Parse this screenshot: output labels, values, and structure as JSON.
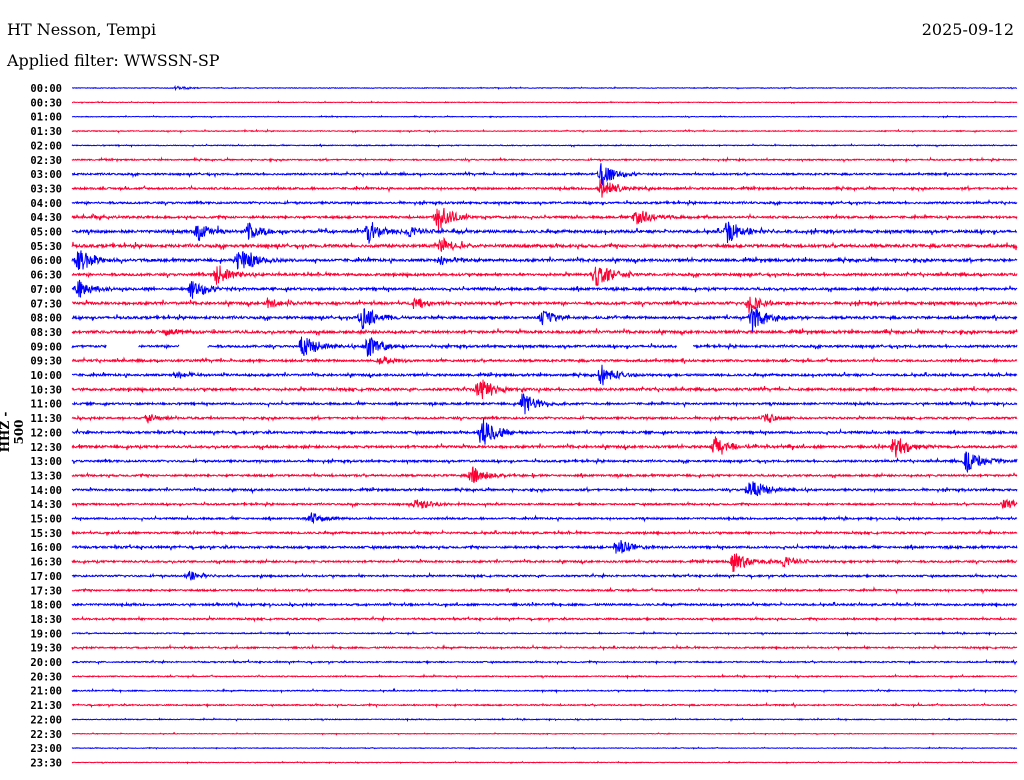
{
  "header": {
    "station": "HT Nesson, Tempi",
    "filter": "Applied filter: WWSSN-SP",
    "date": "2025-09-12"
  },
  "colors": {
    "hour": "#0000ff",
    "half_hour": "#ff0033"
  },
  "chart_data": {
    "type": "line",
    "title": "HT Nesson, Tempi",
    "ylabel": "HHZ - 500",
    "row_minutes": 30,
    "row_labels": [
      "00:00",
      "00:30",
      "01:00",
      "01:30",
      "02:00",
      "02:30",
      "03:00",
      "03:30",
      "04:00",
      "04:30",
      "05:00",
      "05:30",
      "06:00",
      "06:30",
      "07:00",
      "07:30",
      "08:00",
      "08:30",
      "09:00",
      "09:30",
      "10:00",
      "10:30",
      "11:00",
      "11:30",
      "12:00",
      "12:30",
      "13:00",
      "13:30",
      "14:00",
      "14:30",
      "15:00",
      "15:30",
      "16:00",
      "16:30",
      "17:00",
      "17:30",
      "18:00",
      "18:30",
      "19:00",
      "19:30",
      "20:00",
      "20:30",
      "21:00",
      "21:30",
      "22:00",
      "22:30",
      "23:00",
      "23:30"
    ],
    "row_noise": [
      0.3,
      0.3,
      0.3,
      0.4,
      0.4,
      0.6,
      0.8,
      0.9,
      0.9,
      1.0,
      1.2,
      1.3,
      1.2,
      1.1,
      1.1,
      1.2,
      1.1,
      1.2,
      1.0,
      1.0,
      1.0,
      1.1,
      0.9,
      0.9,
      1.0,
      1.1,
      0.9,
      0.9,
      0.9,
      0.8,
      0.8,
      0.9,
      1.0,
      0.9,
      0.8,
      0.8,
      0.9,
      0.8,
      0.5,
      0.7,
      0.6,
      0.5,
      0.5,
      0.6,
      0.4,
      0.3,
      0.3,
      0.3
    ],
    "events": [
      {
        "row": 0,
        "minute": 3.3,
        "amp": 2
      },
      {
        "row": 6,
        "minute": 16.8,
        "amp": 14
      },
      {
        "row": 7,
        "minute": 16.8,
        "amp": 12
      },
      {
        "row": 9,
        "minute": 0.7,
        "amp": 3
      },
      {
        "row": 9,
        "minute": 11.6,
        "amp": 15
      },
      {
        "row": 9,
        "minute": 17.9,
        "amp": 10
      },
      {
        "row": 10,
        "minute": 4.0,
        "amp": 10
      },
      {
        "row": 10,
        "minute": 5.6,
        "amp": 9
      },
      {
        "row": 10,
        "minute": 9.4,
        "amp": 12
      },
      {
        "row": 10,
        "minute": 10.7,
        "amp": 6
      },
      {
        "row": 10,
        "minute": 20.8,
        "amp": 12
      },
      {
        "row": 11,
        "minute": 11.7,
        "amp": 8
      },
      {
        "row": 11,
        "minute": 30.0,
        "amp": 6
      },
      {
        "row": 12,
        "minute": 0.2,
        "amp": 14
      },
      {
        "row": 12,
        "minute": 5.3,
        "amp": 16
      },
      {
        "row": 12,
        "minute": 11.7,
        "amp": 6
      },
      {
        "row": 13,
        "minute": 4.6,
        "amp": 10
      },
      {
        "row": 13,
        "minute": 16.6,
        "amp": 14
      },
      {
        "row": 14,
        "minute": 0.2,
        "amp": 10
      },
      {
        "row": 14,
        "minute": 3.8,
        "amp": 12
      },
      {
        "row": 15,
        "minute": 6.2,
        "amp": 5
      },
      {
        "row": 15,
        "minute": 10.9,
        "amp": 6
      },
      {
        "row": 15,
        "minute": 21.5,
        "amp": 10
      },
      {
        "row": 16,
        "minute": 9.2,
        "amp": 12
      },
      {
        "row": 16,
        "minute": 14.9,
        "amp": 8
      },
      {
        "row": 16,
        "minute": 21.6,
        "amp": 16
      },
      {
        "row": 17,
        "minute": 3.0,
        "amp": 4
      },
      {
        "row": 18,
        "minute": 7.3,
        "amp": 12
      },
      {
        "row": 18,
        "minute": 9.4,
        "amp": 12
      },
      {
        "row": 19,
        "minute": 9.8,
        "amp": 5
      },
      {
        "row": 20,
        "minute": 3.3,
        "amp": 5
      },
      {
        "row": 20,
        "minute": 16.8,
        "amp": 12
      },
      {
        "row": 21,
        "minute": 12.9,
        "amp": 14
      },
      {
        "row": 22,
        "minute": 14.3,
        "amp": 12
      },
      {
        "row": 23,
        "minute": 2.4,
        "amp": 5
      },
      {
        "row": 23,
        "minute": 22.0,
        "amp": 6
      },
      {
        "row": 24,
        "minute": 13.0,
        "amp": 16
      },
      {
        "row": 25,
        "minute": 20.4,
        "amp": 12
      },
      {
        "row": 25,
        "minute": 26.1,
        "amp": 12
      },
      {
        "row": 26,
        "minute": 28.4,
        "amp": 12
      },
      {
        "row": 27,
        "minute": 12.7,
        "amp": 10
      },
      {
        "row": 28,
        "minute": 21.5,
        "amp": 12
      },
      {
        "row": 29,
        "minute": 10.9,
        "amp": 6
      },
      {
        "row": 29,
        "minute": 29.6,
        "amp": 6
      },
      {
        "row": 30,
        "minute": 7.6,
        "amp": 6
      },
      {
        "row": 32,
        "minute": 17.3,
        "amp": 10
      },
      {
        "row": 33,
        "minute": 21.0,
        "amp": 12
      },
      {
        "row": 33,
        "minute": 22.6,
        "amp": 6
      },
      {
        "row": 34,
        "minute": 3.7,
        "amp": 5
      }
    ],
    "gaps": [
      {
        "row": 18,
        "from_minute": 1.1,
        "to_minute": 2.1
      },
      {
        "row": 18,
        "from_minute": 3.4,
        "to_minute": 4.3
      },
      {
        "row": 18,
        "from_minute": 19.2,
        "to_minute": 19.7
      }
    ]
  }
}
